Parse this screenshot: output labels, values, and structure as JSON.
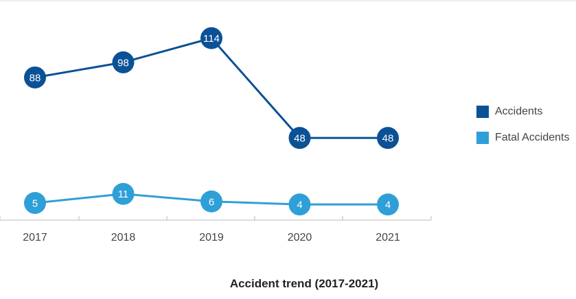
{
  "chart_data": {
    "type": "line",
    "title": "Accident trend (2017-2021)",
    "categories": [
      "2017",
      "2018",
      "2019",
      "2020",
      "2021"
    ],
    "series": [
      {
        "name": "Accidents",
        "values": [
          88,
          98,
          114,
          48,
          48
        ],
        "color": "#0b5196"
      },
      {
        "name": "Fatal Accidents",
        "values": [
          5,
          11,
          6,
          4,
          4
        ],
        "color": "#2f9fd8"
      }
    ],
    "legend_position": "right",
    "grid": false,
    "axis_color": "#bbbbbb"
  }
}
